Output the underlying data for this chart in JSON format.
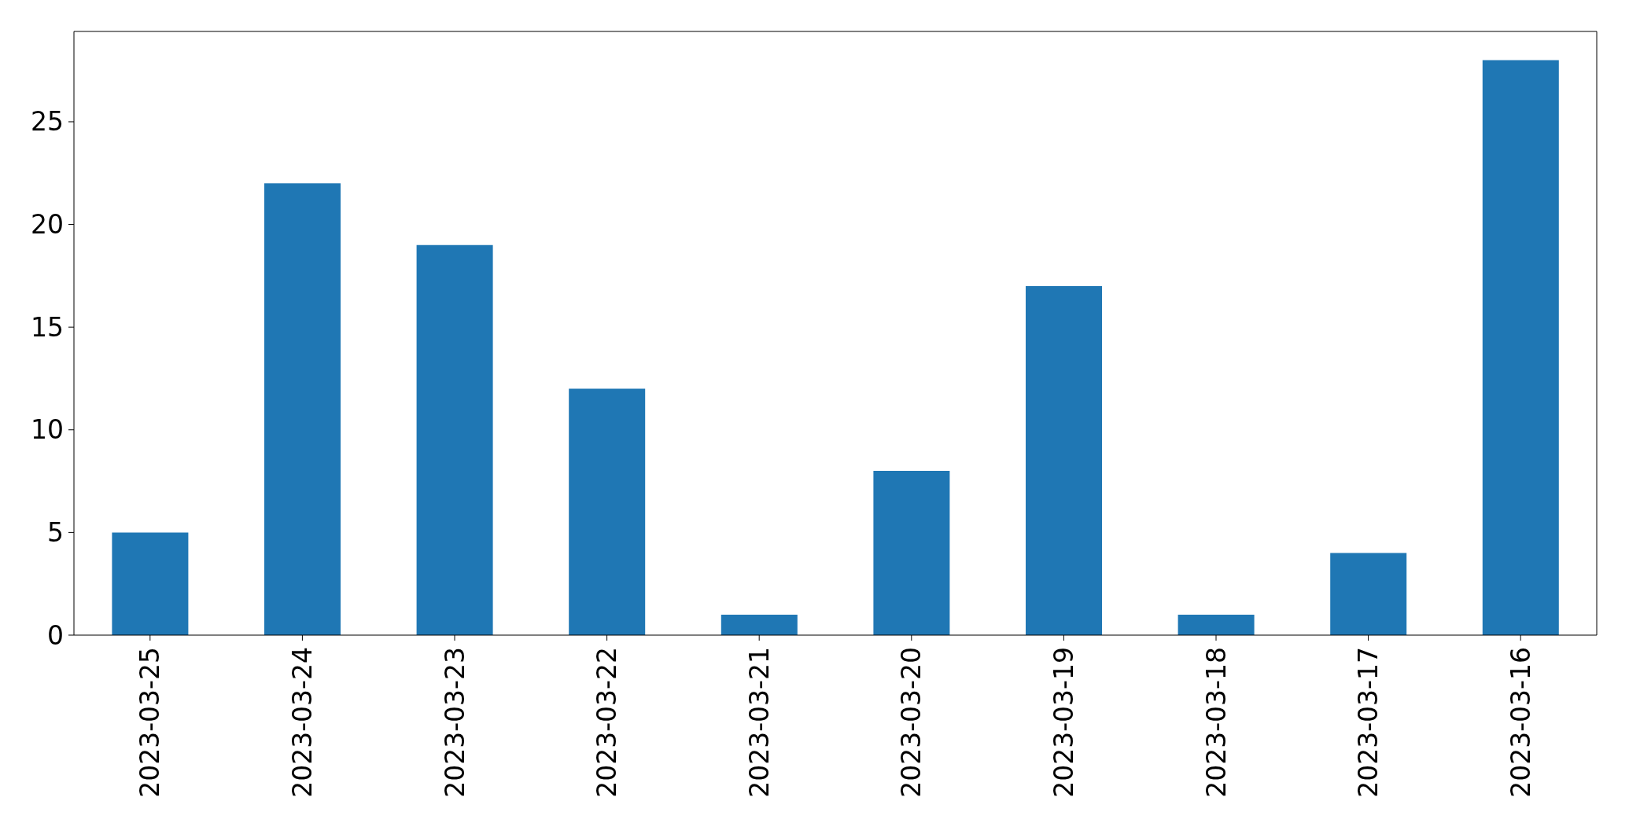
{
  "chart_data": {
    "type": "bar",
    "categories": [
      "2023-03-25",
      "2023-03-24",
      "2023-03-23",
      "2023-03-22",
      "2023-03-21",
      "2023-03-20",
      "2023-03-19",
      "2023-03-18",
      "2023-03-17",
      "2023-03-16"
    ],
    "values": [
      5,
      22,
      19,
      12,
      1,
      8,
      17,
      1,
      4,
      28
    ],
    "color": "#1f77b4",
    "ylim": [
      0,
      29.4
    ],
    "yticks": [
      0,
      5,
      10,
      15,
      20,
      25
    ]
  }
}
